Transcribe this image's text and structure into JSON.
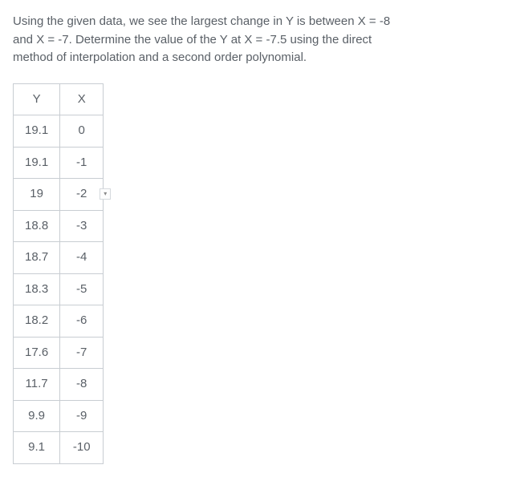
{
  "question": {
    "line1": "Using the given data, we see the largest change in Y is between  X = -8",
    "line2": "and X = -7. Determine the value of the Y at  X = -7.5 using the direct",
    "line3": "method of interpolation and a second order polynomial."
  },
  "table": {
    "headers": [
      "Y",
      "X"
    ],
    "rows": [
      [
        "19.1",
        "0"
      ],
      [
        "19.1",
        "-1"
      ],
      [
        "19",
        "-2"
      ],
      [
        "18.8",
        "-3"
      ],
      [
        "18.7",
        "-4"
      ],
      [
        "18.3",
        "-5"
      ],
      [
        "18.2",
        "-6"
      ],
      [
        "17.6",
        "-7"
      ],
      [
        "11.7",
        "-8"
      ],
      [
        "9.9",
        "-9"
      ],
      [
        "9.1",
        "-10"
      ]
    ],
    "marker_row_index": 2,
    "marker_col_index": 1,
    "colors": {
      "text": "#5a6067",
      "border": "#c8cdd2",
      "background": "#ffffff"
    }
  }
}
